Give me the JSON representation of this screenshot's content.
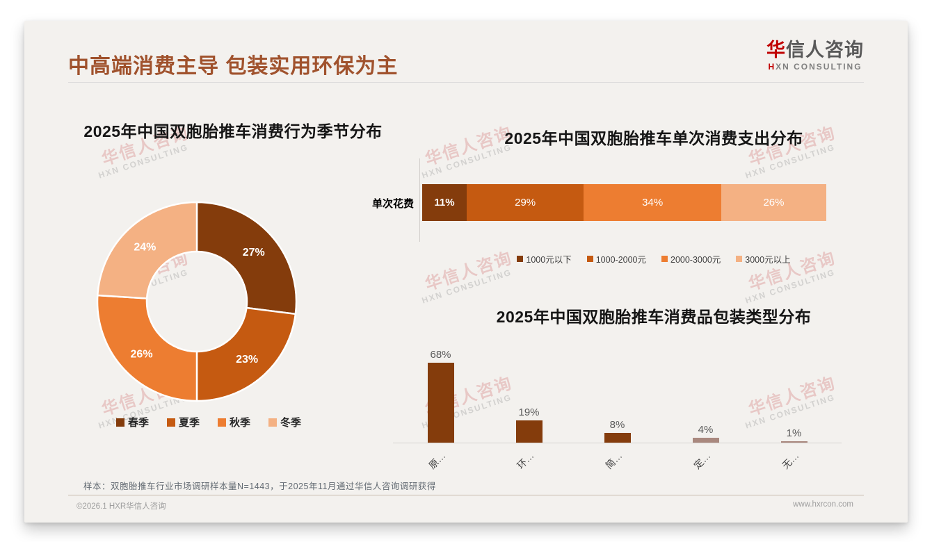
{
  "header": {
    "title": "中高端消费主导 包装实用环保为主",
    "logo": {
      "first": "华",
      "rest": "信人咨询",
      "sub_first": "H",
      "sub_rest": "XN CONSULTING"
    }
  },
  "watermark": {
    "line1": "华信人咨询",
    "line2": "HXN CONSULTING"
  },
  "colors": {
    "title_accent": "#A0522D",
    "brand_red": "#C00000",
    "dark_brown": "#843C0C",
    "mid_brown": "#C55A11",
    "orange": "#ED7D31",
    "peach": "#F4B183",
    "taupe": "#A9887E"
  },
  "chart_data": [
    {
      "type": "pie",
      "subtype": "donut",
      "title": "2025年中国双胞胎推车消费行为季节分布",
      "labels": [
        "春季",
        "夏季",
        "秋季",
        "冬季"
      ],
      "values": [
        27,
        23,
        26,
        24
      ],
      "value_labels": [
        "27%",
        "23%",
        "26%",
        "24%"
      ],
      "colors": [
        "#843C0C",
        "#C55A11",
        "#ED7D31",
        "#F4B183"
      ],
      "legend_position": "bottom"
    },
    {
      "type": "bar",
      "subtype": "stacked-horizontal",
      "title": "2025年中国双胞胎推车单次消费支出分布",
      "category": "单次花费",
      "series": [
        {
          "name": "1000元以下",
          "value": 11,
          "color": "#843C0C"
        },
        {
          "name": "1000-2000元",
          "value": 29,
          "color": "#C55A11"
        },
        {
          "name": "2000-3000元",
          "value": 34,
          "color": "#ED7D31"
        },
        {
          "name": "3000元以上",
          "value": 26,
          "color": "#F4B183"
        }
      ],
      "xlim": [
        0,
        100
      ],
      "legend_position": "bottom"
    },
    {
      "type": "bar",
      "title": "2025年中国双胞胎推车消费品包装类型分布",
      "categories": [
        "原…",
        "环…",
        "简…",
        "定…",
        "无…"
      ],
      "values": [
        68,
        19,
        8,
        4,
        1
      ],
      "value_labels": [
        "68%",
        "19%",
        "8%",
        "4%",
        "1%"
      ],
      "colors": [
        "#843C0C",
        "#843C0C",
        "#843C0C",
        "#A9887E",
        "#A9887E"
      ],
      "ylim": [
        0,
        75
      ],
      "grid": false,
      "legend_position": "none"
    }
  ],
  "footnote": "样本：双胞胎推车行业市场调研样本量N=1443，于2025年11月通过华信人咨询调研获得",
  "footer": {
    "copyright": "©2026.1 HXR华信人咨询",
    "website": "www.hxrcon.com"
  }
}
